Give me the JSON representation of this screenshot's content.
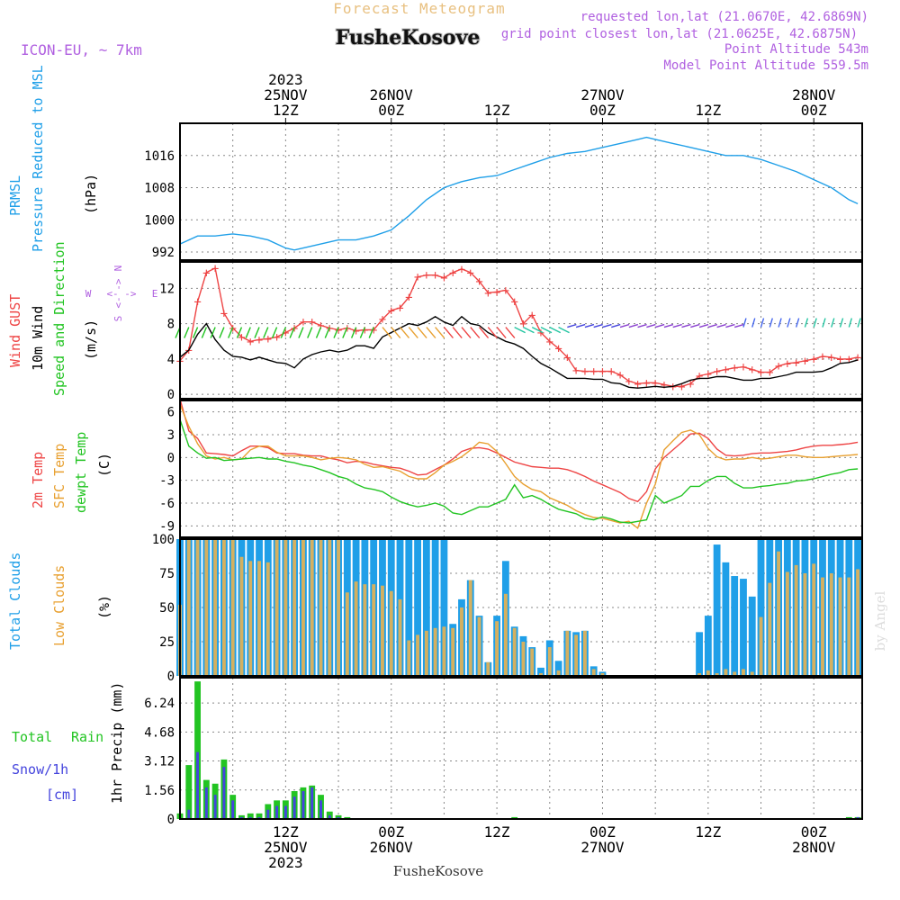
{
  "header": {
    "title": "Forecast Meteogram",
    "location": "FusheKosove",
    "model": "ICON-EU, ~ 7km",
    "requested": "requested lon,lat (21.0670E, 42.6869N)",
    "closest": "grid point closest lon,lat (21.0625E, 42.6875N)",
    "altitude": "Point Altitude 543m",
    "model_altitude": "Model Point Altitude 559.5m",
    "footer": "FusheKosove",
    "watermark": "by Angel"
  },
  "colors": {
    "pressure": "#1f9fe8",
    "gust": "#ee4444",
    "wind": "#000000",
    "t2m": "#ee4444",
    "sfc": "#e8a030",
    "dewpt": "#22c422",
    "total_clouds": "#1f9fe8",
    "low_clouds": "#d4b060",
    "rain": "#22c422",
    "snow": "#4444dd",
    "label_purple": "#b060e0",
    "label_orange": "#e8c080"
  },
  "time_axis": {
    "top": [
      {
        "h": 12,
        "lines": [
          "2023",
          "25NOV",
          "12Z"
        ]
      },
      {
        "h": 24,
        "lines": [
          "26NOV",
          "00Z"
        ]
      },
      {
        "h": 36,
        "lines": [
          "12Z"
        ]
      },
      {
        "h": 48,
        "lines": [
          "27NOV",
          "00Z"
        ]
      },
      {
        "h": 60,
        "lines": [
          "12Z"
        ]
      },
      {
        "h": 72,
        "lines": [
          "28NOV",
          "00Z"
        ]
      }
    ],
    "bottom": [
      {
        "h": 12,
        "lines": [
          "12Z",
          "25NOV",
          "2023"
        ]
      },
      {
        "h": 24,
        "lines": [
          "00Z",
          "26NOV"
        ]
      },
      {
        "h": 36,
        "lines": [
          "12Z"
        ]
      },
      {
        "h": 48,
        "lines": [
          "00Z",
          "27NOV"
        ]
      },
      {
        "h": 60,
        "lines": [
          "12Z"
        ]
      },
      {
        "h": 72,
        "lines": [
          "00Z",
          "28NOV"
        ]
      }
    ]
  },
  "panel_labels": {
    "pressure": [
      "PRMSL",
      "Pressure Reduced to MSL",
      "(hPa)"
    ],
    "wind": [
      "Wind GUST",
      "10m Wind",
      "Speed and Direction",
      "(m/s)"
    ],
    "compass": [
      "N",
      "S",
      "W",
      "E",
      "<- ->"
    ],
    "temp": [
      "2m Temp",
      "SFC Temp",
      "dewpt Temp",
      "(C)"
    ],
    "clouds": [
      "Total Clouds",
      "Low Clouds",
      "(%)"
    ],
    "precip": [
      "Total",
      "Rain",
      "Snow/1h",
      "[cm]",
      "1hr Precip (mm)"
    ]
  },
  "chart_data": [
    {
      "type": "line",
      "name": "pressure",
      "ylim": [
        990,
        1024
      ],
      "yticks": [
        992,
        1000,
        1008,
        1016
      ],
      "x": [
        0,
        2,
        4,
        6,
        8,
        10,
        12,
        13,
        14,
        16,
        18,
        20,
        22,
        24,
        26,
        28,
        30,
        32,
        34,
        36,
        38,
        40,
        42,
        44,
        46,
        48,
        50,
        52,
        53,
        54,
        56,
        58,
        60,
        62,
        64,
        66,
        68,
        70,
        72,
        74,
        76,
        77
      ],
      "series": [
        {
          "name": "PRMSL",
          "values": [
            994,
            996,
            996,
            996.5,
            996,
            995,
            993,
            992.5,
            993,
            994,
            995,
            995,
            996,
            997.5,
            1001,
            1005,
            1008,
            1009.5,
            1010.5,
            1011,
            1012.5,
            1014,
            1015.5,
            1016.5,
            1017,
            1018,
            1019,
            1020,
            1020.5,
            1020,
            1019,
            1018,
            1017,
            1016,
            1016,
            1015,
            1013.5,
            1012,
            1010,
            1008,
            1005,
            1004
          ]
        }
      ]
    },
    {
      "type": "line",
      "name": "wind",
      "ylim": [
        -0.5,
        15
      ],
      "yticks": [
        0,
        4,
        8,
        12
      ],
      "x": [
        0,
        1,
        2,
        3,
        4,
        5,
        6,
        7,
        8,
        9,
        10,
        11,
        12,
        13,
        14,
        15,
        16,
        17,
        18,
        19,
        20,
        21,
        22,
        23,
        24,
        25,
        26,
        27,
        28,
        29,
        30,
        31,
        32,
        33,
        34,
        35,
        36,
        37,
        38,
        39,
        40,
        41,
        42,
        43,
        44,
        45,
        46,
        47,
        48,
        49,
        50,
        51,
        52,
        53,
        54,
        55,
        56,
        57,
        58,
        59,
        60,
        61,
        62,
        63,
        64,
        65,
        66,
        67,
        68,
        69,
        70,
        71,
        72,
        73,
        74,
        75,
        76,
        77
      ],
      "series": [
        {
          "name": "Wind GUST",
          "values": [
            3.8,
            5,
            10.5,
            13.8,
            14.3,
            9.2,
            7.5,
            6.5,
            6,
            6.2,
            6.3,
            6.5,
            7,
            7.5,
            8.2,
            8.2,
            7.8,
            7.5,
            7.3,
            7.5,
            7.2,
            7.3,
            7.3,
            8.5,
            9.5,
            9.8,
            11,
            13.3,
            13.5,
            13.5,
            13.2,
            13.8,
            14.2,
            13.8,
            12.8,
            11.5,
            11.6,
            11.8,
            10.5,
            8,
            9,
            7,
            6,
            5.2,
            4.2,
            2.7,
            2.6,
            2.6,
            2.6,
            2.6,
            2.2,
            1.5,
            1.2,
            1.3,
            1.3,
            1.1,
            0.9,
            0.9,
            1.2,
            2.1,
            2.3,
            2.6,
            2.8,
            3,
            3.1,
            2.8,
            2.5,
            2.5,
            3.2,
            3.5,
            3.6,
            3.8,
            4,
            4.3,
            4.2,
            4,
            4,
            4.2
          ]
        },
        {
          "name": "10m Wind",
          "values": [
            4.2,
            5,
            6.8,
            8,
            6.2,
            5,
            4.3,
            4.2,
            3.9,
            4.2,
            3.9,
            3.6,
            3.5,
            3,
            4,
            4.5,
            4.8,
            5,
            4.8,
            5,
            5.5,
            5.5,
            5.2,
            6.5,
            7,
            7.5,
            8,
            7.8,
            8.2,
            8.8,
            8.2,
            7.8,
            8.8,
            8,
            7.8,
            7,
            6.5,
            6,
            5.7,
            5.2,
            4.3,
            3.5,
            3,
            2.4,
            1.8,
            1.8,
            1.8,
            1.7,
            1.7,
            1.3,
            1.2,
            0.8,
            0.7,
            0.8,
            0.9,
            0.8,
            0.9,
            1.2,
            1.6,
            1.8,
            1.8,
            2,
            2,
            1.8,
            1.6,
            1.6,
            1.8,
            1.8,
            2,
            2.2,
            2.5,
            2.5,
            2.5,
            2.6,
            3,
            3.5,
            3.6,
            3.9
          ]
        }
      ]
    },
    {
      "type": "line",
      "name": "temperature",
      "ylim": [
        -10.5,
        7.5
      ],
      "yticks": [
        -9,
        -6,
        -3,
        0,
        3,
        6
      ],
      "x": [
        0,
        1,
        2,
        3,
        4,
        5,
        6,
        7,
        8,
        9,
        10,
        11,
        12,
        13,
        14,
        15,
        16,
        17,
        18,
        19,
        20,
        21,
        22,
        23,
        24,
        25,
        26,
        27,
        28,
        29,
        30,
        31,
        32,
        33,
        34,
        35,
        36,
        37,
        38,
        39,
        40,
        41,
        42,
        43,
        44,
        45,
        46,
        47,
        48,
        49,
        50,
        51,
        52,
        53,
        54,
        55,
        56,
        57,
        58,
        59,
        60,
        61,
        62,
        63,
        64,
        65,
        66,
        67,
        68,
        69,
        70,
        71,
        72,
        73,
        74,
        75,
        76,
        77
      ],
      "series": [
        {
          "name": "2m Temp",
          "values": [
            7.7,
            3.5,
            2.5,
            0.6,
            0.5,
            0.4,
            0.2,
            0.9,
            1.5,
            1.5,
            1.3,
            0.6,
            0.5,
            0.5,
            0.3,
            0.2,
            0.2,
            -0.1,
            -0.3,
            -0.7,
            -0.5,
            -0.6,
            -0.9,
            -1.1,
            -1.3,
            -1.4,
            -1.8,
            -2.3,
            -2.2,
            -1.6,
            -1,
            -0.2,
            0.8,
            1.2,
            1.3,
            1.1,
            0.6,
            0,
            -0.6,
            -0.9,
            -1.2,
            -1.3,
            -1.4,
            -1.4,
            -1.6,
            -2,
            -2.5,
            -3.1,
            -3.6,
            -4.1,
            -4.6,
            -5.4,
            -5.8,
            -4.5,
            -1.5,
            0,
            1,
            2,
            3.1,
            3.2,
            2.5,
            1.1,
            0.3,
            0.2,
            0.3,
            0.5,
            0.6,
            0.6,
            0.7,
            0.8,
            1,
            1.3,
            1.5,
            1.6,
            1.6,
            1.7,
            1.8,
            2
          ]
        },
        {
          "name": "SFC Temp",
          "values": [
            7,
            4.1,
            1.8,
            0.2,
            -0.2,
            0,
            -0.3,
            -0.2,
            1,
            1.5,
            1.5,
            0.7,
            0.2,
            0.2,
            0.2,
            0,
            -0.3,
            -0.1,
            0,
            -0.1,
            -0.3,
            -0.9,
            -1.3,
            -1.2,
            -1.5,
            -1.8,
            -2.5,
            -2.8,
            -2.8,
            -2,
            -1,
            -0.5,
            0.1,
            1,
            2,
            1.8,
            0.8,
            -0.8,
            -2.5,
            -3.5,
            -4.2,
            -4.5,
            -5.3,
            -5.8,
            -6.3,
            -7,
            -7.5,
            -7.9,
            -8,
            -8.3,
            -8.6,
            -8.4,
            -9.3,
            -6,
            -3.5,
            1,
            2.2,
            3.3,
            3.6,
            3,
            1.2,
            0.1,
            -0.3,
            -0.2,
            -0.2,
            0,
            -0.2,
            -0.1,
            0.1,
            0.3,
            0.3,
            0.1,
            0,
            0,
            0.1,
            0.2,
            0.3,
            0.4
          ]
        },
        {
          "name": "dewpt Temp",
          "values": [
            5,
            1.5,
            0.6,
            -0.1,
            0,
            -0.4,
            -0.3,
            -0.2,
            -0.1,
            0,
            -0.2,
            -0.2,
            -0.5,
            -0.7,
            -1,
            -1.2,
            -1.6,
            -2,
            -2.5,
            -2.8,
            -3.5,
            -4,
            -4.2,
            -4.5,
            -5.2,
            -5.8,
            -6.2,
            -6.5,
            -6.3,
            -6,
            -6.4,
            -7.3,
            -7.5,
            -7,
            -6.5,
            -6.5,
            -6,
            -5.5,
            -3.6,
            -5.3,
            -5,
            -5.5,
            -6.2,
            -6.8,
            -7.1,
            -7.4,
            -8,
            -8.2,
            -7.8,
            -8.1,
            -8.5,
            -8.6,
            -8.4,
            -8.2,
            -5,
            -6,
            -5.5,
            -5,
            -3.8,
            -3.8,
            -3,
            -2.5,
            -2.5,
            -3.4,
            -4,
            -4,
            -3.8,
            -3.7,
            -3.5,
            -3.4,
            -3.1,
            -3,
            -2.8,
            -2.5,
            -2.2,
            -2,
            -1.6,
            -1.5
          ]
        }
      ]
    },
    {
      "type": "bar",
      "name": "clouds",
      "ylim": [
        0,
        100
      ],
      "yticks": [
        0,
        25,
        50,
        75,
        100
      ],
      "x": [
        0,
        1,
        2,
        3,
        4,
        5,
        6,
        7,
        8,
        9,
        10,
        11,
        12,
        13,
        14,
        15,
        16,
        17,
        18,
        19,
        20,
        21,
        22,
        23,
        24,
        25,
        26,
        27,
        28,
        29,
        30,
        31,
        32,
        33,
        34,
        35,
        36,
        37,
        38,
        39,
        40,
        41,
        42,
        43,
        44,
        45,
        46,
        47,
        48,
        49,
        50,
        51,
        52,
        53,
        54,
        55,
        56,
        57,
        58,
        59,
        60,
        61,
        62,
        63,
        64,
        65,
        66,
        67,
        68,
        69,
        70,
        71,
        72,
        73,
        74,
        75,
        76,
        77
      ],
      "series": [
        {
          "name": "Total Clouds",
          "values": [
            100,
            100,
            100,
            100,
            100,
            100,
            100,
            100,
            100,
            100,
            100,
            100,
            100,
            100,
            100,
            100,
            100,
            100,
            100,
            100,
            100,
            100,
            100,
            100,
            100,
            100,
            100,
            100,
            100,
            100,
            100,
            38,
            56,
            70,
            44,
            10,
            44,
            84,
            36,
            29,
            21,
            6,
            26,
            11,
            33,
            32,
            33,
            7,
            3,
            0,
            0,
            0,
            0,
            0,
            0,
            0,
            0,
            0,
            0,
            32,
            44,
            96,
            83,
            73,
            71,
            58,
            100,
            100,
            100,
            100,
            100,
            100,
            100,
            100,
            100,
            100,
            100,
            100
          ]
        },
        {
          "name": "Low Clouds",
          "values": [
            52,
            100,
            100,
            100,
            100,
            100,
            100,
            87,
            84,
            84,
            83,
            100,
            100,
            100,
            100,
            100,
            100,
            100,
            100,
            61,
            69,
            67,
            67,
            66,
            62,
            56,
            26,
            30,
            33,
            35,
            36,
            35,
            50,
            70,
            43,
            10,
            40,
            60,
            35,
            25,
            20,
            2,
            21,
            4,
            33,
            30,
            33,
            5,
            2,
            0,
            0,
            0,
            0,
            0,
            0,
            0,
            0,
            0,
            0,
            2,
            4,
            2,
            5,
            3,
            5,
            3,
            43,
            68,
            91,
            76,
            81,
            75,
            82,
            72,
            75,
            72,
            72,
            78
          ]
        }
      ]
    },
    {
      "type": "bar",
      "name": "precipitation",
      "ylim": [
        0,
        7.6
      ],
      "yticks": [
        0,
        1.56,
        3.12,
        4.68,
        6.24
      ],
      "x": [
        0,
        1,
        2,
        3,
        4,
        5,
        6,
        7,
        8,
        9,
        10,
        11,
        12,
        13,
        14,
        15,
        16,
        17,
        18,
        19,
        38,
        76,
        77
      ],
      "series": [
        {
          "name": "Total Rain",
          "values": [
            0.3,
            2.9,
            7.4,
            2.1,
            1.9,
            3.2,
            1.3,
            0.2,
            0.3,
            0.3,
            0.8,
            1,
            1,
            1.5,
            1.7,
            1.8,
            1.3,
            0.4,
            0.2,
            0.1,
            0.1,
            0.1,
            0.1
          ]
        },
        {
          "name": "Snow/1h",
          "values": [
            0,
            0.5,
            3.6,
            1.7,
            1.3,
            2.8,
            1,
            0.1,
            0.1,
            0.1,
            0.5,
            0.7,
            0.7,
            1.2,
            1.5,
            1.7,
            1,
            0.2,
            0.1,
            0,
            0,
            0.05,
            0.1
          ]
        }
      ]
    }
  ]
}
